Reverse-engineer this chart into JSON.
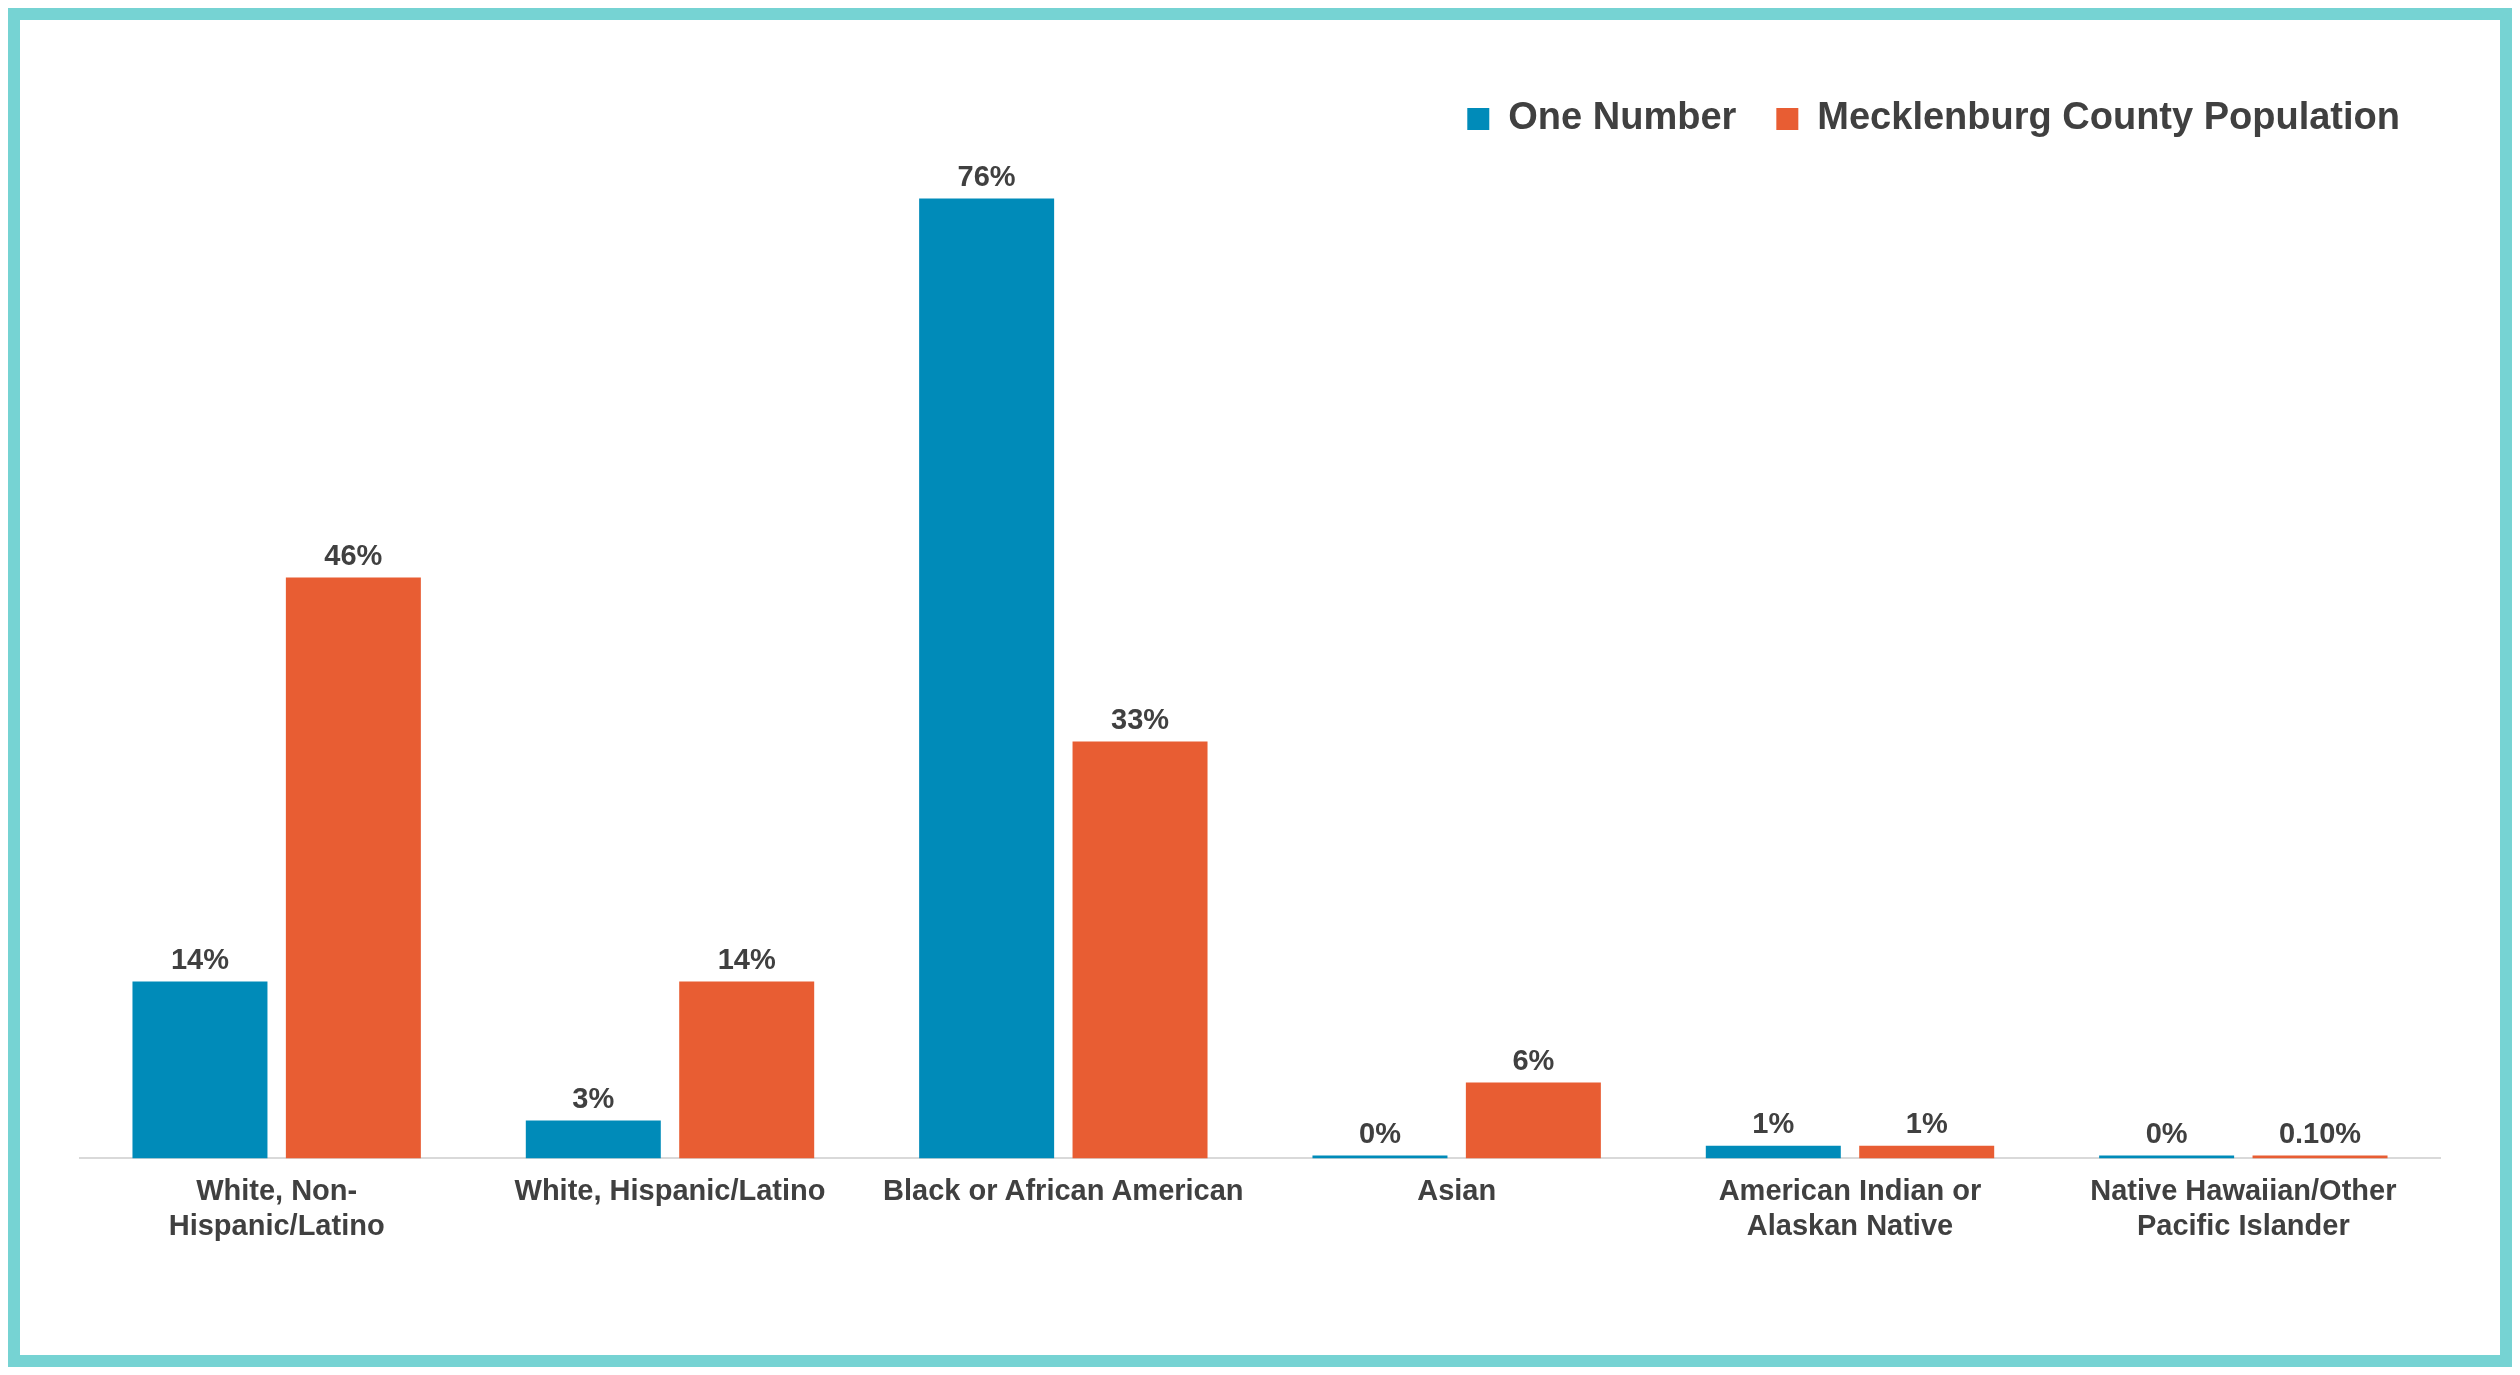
{
  "chart_data": {
    "type": "bar",
    "categories": [
      "White, Non-Hispanic/Latino",
      "White, Hispanic/Latino",
      "Black or African American",
      "Asian",
      "American Indian or Alaskan Native",
      "Native Hawaiian/Other Pacific Islander"
    ],
    "series": [
      {
        "name": "One Number",
        "color": "#008bb9",
        "values": [
          14,
          3,
          76,
          0,
          1,
          0
        ],
        "value_labels": [
          "14%",
          "3%",
          "76%",
          "0%",
          "1%",
          "0%"
        ]
      },
      {
        "name": "Mecklenburg County Population",
        "color": "#e85d33",
        "values": [
          46,
          14,
          33,
          6,
          1,
          0.1
        ],
        "value_labels": [
          "46%",
          "14%",
          "33%",
          "6%",
          "1%",
          "0.10%"
        ]
      }
    ],
    "grid": false,
    "legend": "top right",
    "tick_labels": "x"
  }
}
